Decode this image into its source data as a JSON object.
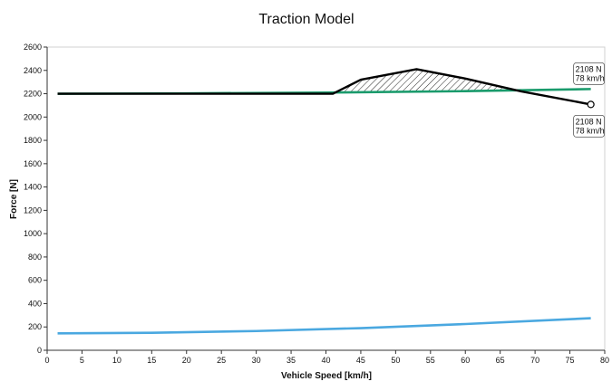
{
  "chart_data": {
    "type": "line",
    "title": "Traction Model",
    "xlabel": "Vehicle Speed [km/h]",
    "ylabel": "Force [N]",
    "xlim": [
      0,
      80
    ],
    "ylim": [
      0,
      2600
    ],
    "xticks": [
      0,
      5,
      10,
      15,
      20,
      25,
      30,
      35,
      40,
      45,
      50,
      55,
      60,
      65,
      70,
      75,
      80
    ],
    "yticks": [
      0,
      200,
      400,
      600,
      800,
      1000,
      1200,
      1400,
      1600,
      1800,
      2000,
      2200,
      2400,
      2600
    ],
    "grid": false,
    "legend": "none",
    "series": [
      {
        "color": "#000000",
        "x": [
          1.5,
          41,
          45,
          53,
          60,
          68,
          78
        ],
        "y": [
          2200,
          2200,
          2320,
          2410,
          2330,
          2220,
          2108
        ]
      },
      {
        "color": "#1a9b6c",
        "x": [
          1.5,
          20,
          40,
          60,
          78
        ],
        "y": [
          2200,
          2203,
          2210,
          2222,
          2240
        ]
      },
      {
        "color": "#4aa8e0",
        "x": [
          1.5,
          15,
          30,
          45,
          60,
          78
        ],
        "y": [
          145,
          150,
          165,
          190,
          225,
          275
        ]
      }
    ],
    "hatched_area": {
      "description_between": [
        "series 0",
        "series 1"
      ],
      "x_range": [
        41,
        68
      ]
    },
    "annotations": [
      {
        "x": 78,
        "y": 2108,
        "line1": "2108 N",
        "line2": "78 km/h",
        "position": "above"
      },
      {
        "x": 78,
        "y": 2108,
        "line1": "2108 N",
        "line2": "78 km/h",
        "position": "below"
      }
    ]
  }
}
